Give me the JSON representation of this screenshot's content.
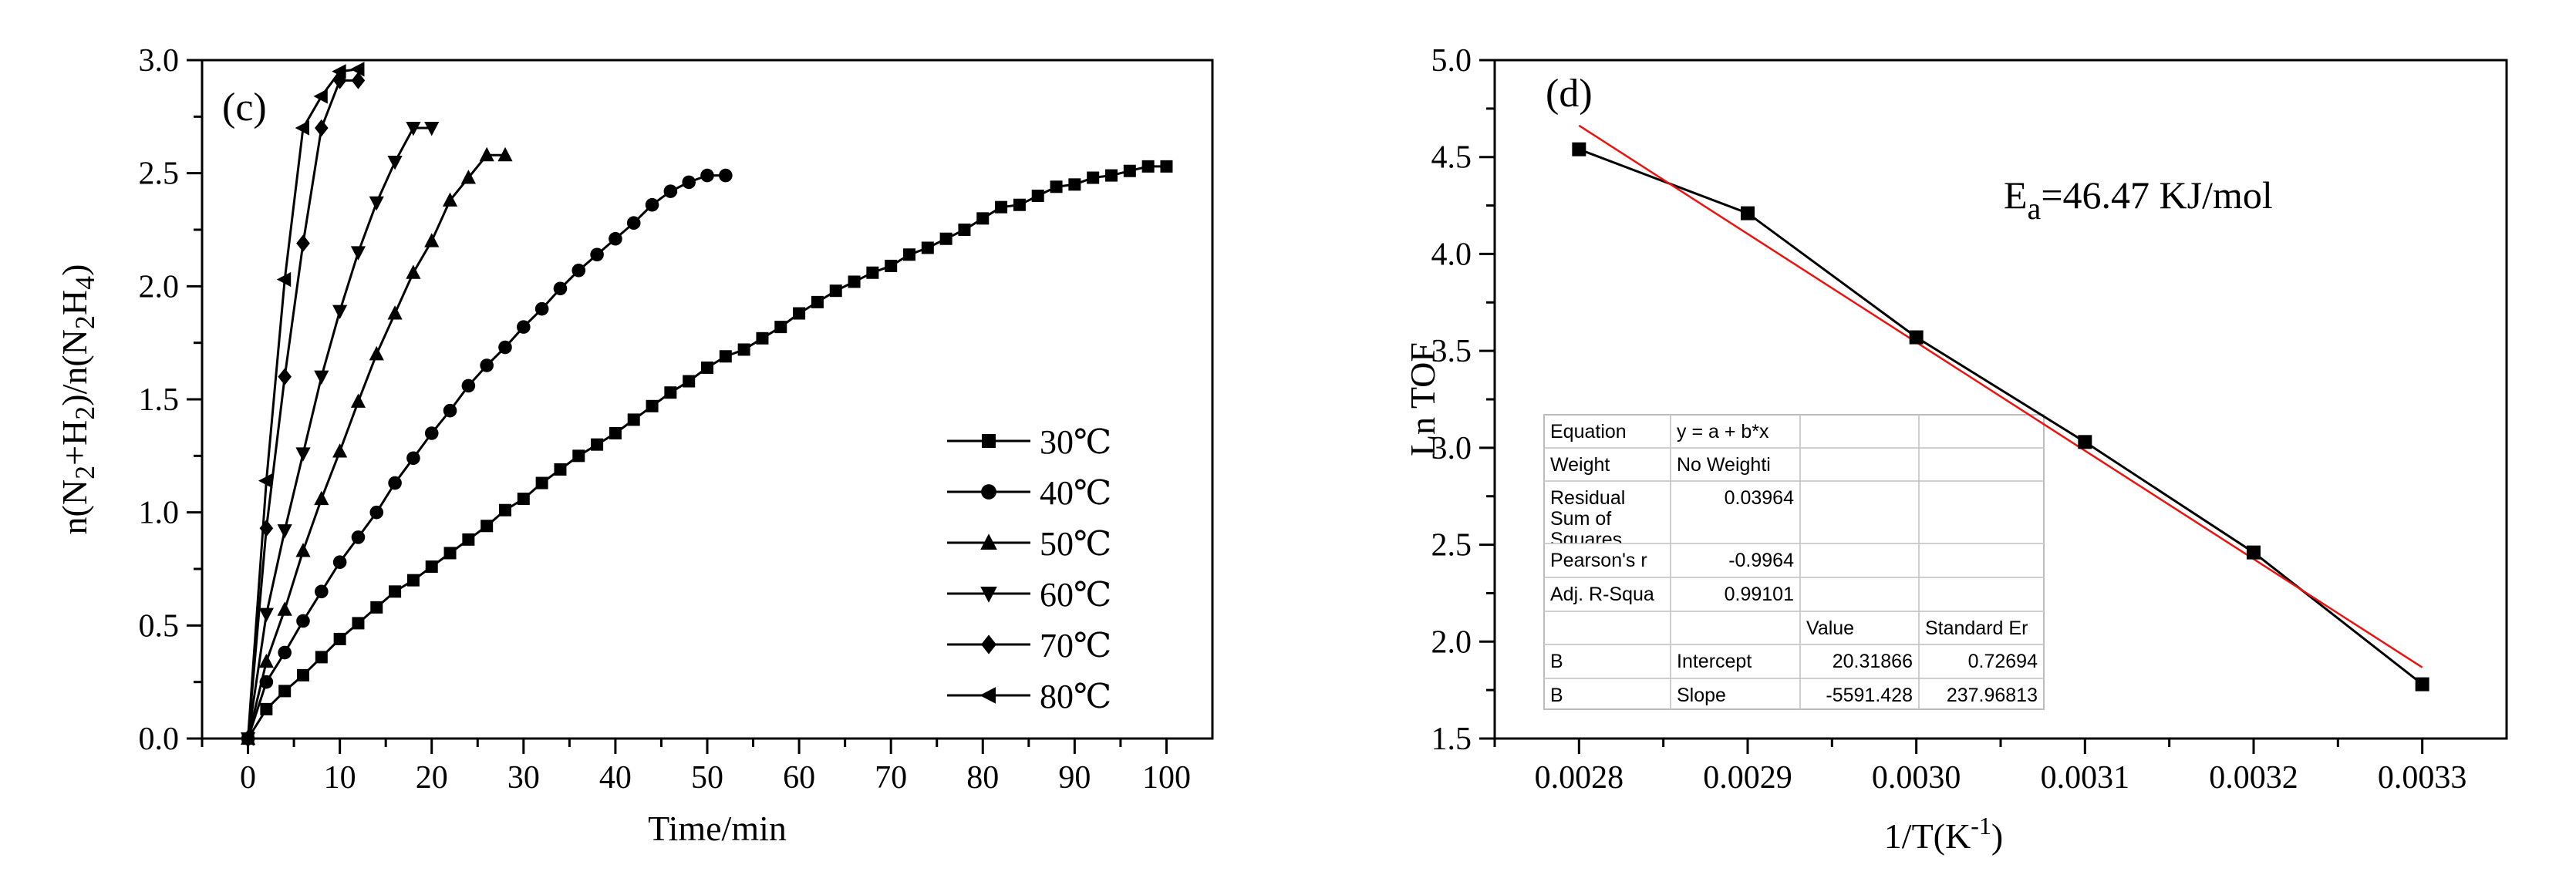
{
  "chart_data": [
    {
      "panel": "(c)",
      "type": "line",
      "xlabel": "Time/min",
      "ylabel_parts": [
        "n(N",
        "2",
        "+H",
        "2",
        ")/n(N",
        "2",
        "H",
        "4",
        ")"
      ],
      "xlim": [
        -5,
        105
      ],
      "ylim": [
        0,
        3.0
      ],
      "xticks": [
        0,
        10,
        20,
        30,
        40,
        50,
        60,
        70,
        80,
        90,
        100
      ],
      "yticks": [
        0.0,
        0.5,
        1.0,
        1.5,
        2.0,
        2.5,
        3.0
      ],
      "ytick_labels": [
        "0.0",
        "0.5",
        "1.0",
        "1.5",
        "2.0",
        "2.5",
        "3.0"
      ],
      "legend_position": "bottom-right",
      "series": [
        {
          "name": "30℃",
          "marker": "square",
          "x": [
            0,
            2,
            4,
            6,
            8,
            10,
            12,
            14,
            16,
            18,
            20,
            22,
            24,
            26,
            28,
            30,
            32,
            34,
            36,
            38,
            40,
            42,
            44,
            46,
            48,
            50,
            52,
            54,
            56,
            58,
            60,
            62,
            64,
            66,
            68,
            70,
            72,
            74,
            76,
            78,
            80,
            82,
            84,
            86,
            88,
            90,
            92,
            94,
            96,
            98,
            100
          ],
          "y": [
            0,
            0.13,
            0.21,
            0.28,
            0.36,
            0.44,
            0.51,
            0.58,
            0.65,
            0.7,
            0.76,
            0.82,
            0.88,
            0.94,
            1.01,
            1.06,
            1.13,
            1.19,
            1.25,
            1.3,
            1.35,
            1.41,
            1.47,
            1.53,
            1.58,
            1.64,
            1.69,
            1.72,
            1.77,
            1.82,
            1.88,
            1.93,
            1.98,
            2.02,
            2.06,
            2.09,
            2.14,
            2.17,
            2.21,
            2.25,
            2.3,
            2.35,
            2.36,
            2.4,
            2.44,
            2.45,
            2.48,
            2.49,
            2.51,
            2.53,
            2.53
          ]
        },
        {
          "name": "40℃",
          "marker": "circle",
          "x": [
            0,
            2,
            4,
            6,
            8,
            10,
            12,
            14,
            16,
            18,
            20,
            22,
            24,
            26,
            28,
            30,
            32,
            34,
            36,
            38,
            40,
            42,
            44,
            46,
            48,
            50,
            52
          ],
          "y": [
            0,
            0.25,
            0.38,
            0.52,
            0.65,
            0.78,
            0.89,
            1.0,
            1.13,
            1.24,
            1.35,
            1.45,
            1.56,
            1.65,
            1.73,
            1.82,
            1.9,
            1.99,
            2.07,
            2.14,
            2.21,
            2.28,
            2.36,
            2.42,
            2.46,
            2.49,
            2.49
          ]
        },
        {
          "name": "50℃",
          "marker": "triangle-up",
          "x": [
            0,
            2,
            4,
            6,
            8,
            10,
            12,
            14,
            16,
            18,
            20,
            22,
            24,
            26,
            28
          ],
          "y": [
            0,
            0.34,
            0.57,
            0.83,
            1.06,
            1.27,
            1.49,
            1.7,
            1.88,
            2.06,
            2.2,
            2.38,
            2.48,
            2.58,
            2.58
          ]
        },
        {
          "name": "60℃",
          "marker": "triangle-down",
          "x": [
            0,
            2,
            4,
            6,
            8,
            10,
            12,
            14,
            16,
            18,
            20
          ],
          "y": [
            0,
            0.55,
            0.92,
            1.26,
            1.6,
            1.89,
            2.15,
            2.37,
            2.55,
            2.7,
            2.7
          ]
        },
        {
          "name": "70℃",
          "marker": "diamond",
          "x": [
            0,
            2,
            4,
            6,
            8,
            10,
            12
          ],
          "y": [
            0,
            0.93,
            1.6,
            2.19,
            2.7,
            2.91,
            2.91
          ]
        },
        {
          "name": "80℃",
          "marker": "triangle-left",
          "x": [
            0,
            2,
            4,
            6,
            8,
            10,
            12
          ],
          "y": [
            0,
            1.14,
            2.03,
            2.7,
            2.84,
            2.95,
            2.96
          ]
        }
      ]
    },
    {
      "panel": "(d)",
      "type": "scatter",
      "xlabel_main": "1/T(K",
      "xlabel_sup": "-1",
      "xlabel_end": ")",
      "ylabel": "Ln TOF",
      "xlim": [
        0.00275,
        0.00335
      ],
      "ylim": [
        1.5,
        5.0
      ],
      "xticks": [
        0.0028,
        0.0029,
        0.003,
        0.0031,
        0.0032,
        0.0033
      ],
      "xtick_labels": [
        "0.0028",
        "0.0029",
        "0.0030",
        "0.0031",
        "0.0032",
        "0.0033"
      ],
      "yticks": [
        1.5,
        2.0,
        2.5,
        3.0,
        3.5,
        4.0,
        4.5,
        5.0
      ],
      "ytick_labels": [
        "1.5",
        "2.0",
        "2.5",
        "3.0",
        "3.5",
        "4.0",
        "4.5",
        "5.0"
      ],
      "points": {
        "x": [
          0.0028,
          0.0029,
          0.003,
          0.0031,
          0.0032,
          0.0033
        ],
        "y": [
          4.54,
          4.21,
          3.57,
          3.03,
          2.46,
          1.78
        ]
      },
      "fit": {
        "intercept": 20.31866,
        "slope": -5591.428,
        "x_range": [
          0.0028,
          0.0033
        ],
        "color": "#e8140f"
      },
      "annotation": {
        "prefix": "E",
        "sub": "a",
        "suffix": "=46.47 KJ/mol"
      },
      "stats_table": [
        [
          "Equation",
          "y = a + b*x",
          "",
          ""
        ],
        [
          "Weight",
          "No Weighti",
          "",
          ""
        ],
        [
          "Residual Sum of Squares",
          "0.03964",
          "",
          ""
        ],
        [
          "Pearson's r",
          "-0.9964",
          "",
          ""
        ],
        [
          "Adj. R-Squa",
          "0.99101",
          "",
          ""
        ],
        [
          "",
          "",
          "Value",
          "Standard Er"
        ],
        [
          "B",
          "Intercept",
          "20.31866",
          "0.72694"
        ],
        [
          "B",
          "Slope",
          "-5591.428",
          "237.96813"
        ]
      ]
    }
  ]
}
